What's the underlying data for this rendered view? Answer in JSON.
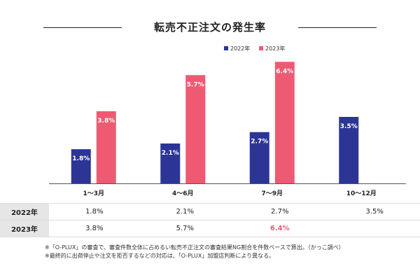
{
  "chart_data": {
    "type": "bar",
    "title": "転売不正注文の発生率",
    "categories": [
      "1〜3月",
      "4〜6月",
      "7〜9月",
      "10〜12月"
    ],
    "series": [
      {
        "name": "2022年",
        "values": [
          1.8,
          2.1,
          2.7,
          3.5
        ],
        "labels": [
          "1.8%",
          "2.1%",
          "2.7%",
          "3.5%"
        ],
        "color": "#2c3596"
      },
      {
        "name": "2023年",
        "values": [
          3.8,
          5.7,
          6.4,
          null
        ],
        "labels": [
          "3.8%",
          "5.7%",
          "6.4%",
          ""
        ],
        "color": "#ef5a73"
      }
    ],
    "ylim": [
      0,
      7
    ],
    "grid": false,
    "legend": "top-right",
    "xlabel": "",
    "ylabel": ""
  },
  "table": {
    "rows": [
      {
        "label": "2022年",
        "cells": [
          "1.8%",
          "2.1%",
          "2.7%",
          "3.5%"
        ]
      },
      {
        "label": "2023年",
        "cells": [
          "3.8%",
          "5.7%",
          "6.4%",
          ""
        ]
      }
    ],
    "highlight_color": "#ef5a73"
  },
  "notes": [
    "※「O-PLUX」の審査で、審査件数全体に占めるい転売不正注文の審査結果NG割合を件数ベースで算出。（かっこ調べ）",
    "※最終的に出荷停止や注文を拒否するなどの対応は、「O-PLUX」加盟店判断により異なる。"
  ]
}
